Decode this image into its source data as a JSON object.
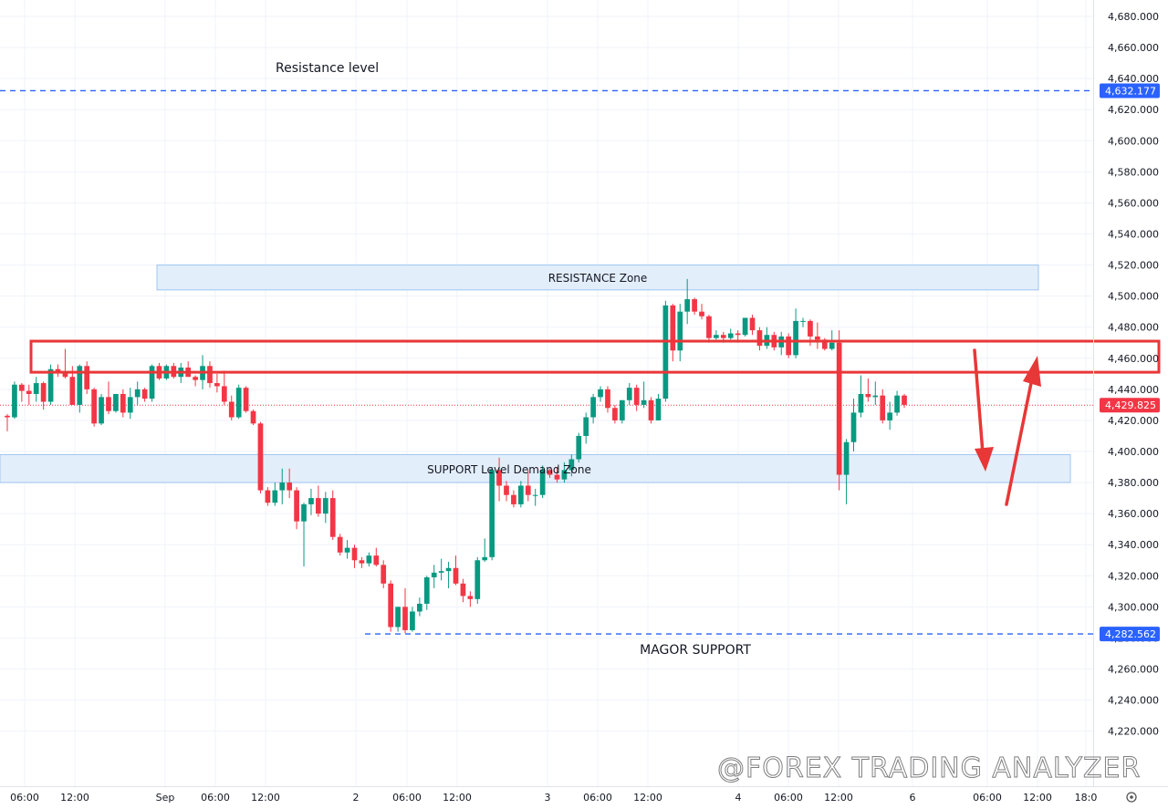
{
  "chart_data": {
    "type": "candlestick",
    "y_ticks": [
      "4,680.000",
      "4,660.000",
      "4,640.000",
      "4,620.000",
      "4,600.000",
      "4,580.000",
      "4,560.000",
      "4,540.000",
      "4,520.000",
      "4,500.000",
      "4,480.000",
      "4,460.000",
      "4,440.000",
      "4,420.000",
      "4,400.000",
      "4,380.000",
      "4,360.000",
      "4,340.000",
      "4,320.000",
      "4,300.000",
      "4,280.000",
      "4,260.000",
      "4,240.000",
      "4,220.000"
    ],
    "y_tick_values": [
      4680,
      4660,
      4640,
      4620,
      4600,
      4580,
      4560,
      4540,
      4520,
      4500,
      4480,
      4460,
      4440,
      4420,
      4400,
      4380,
      4360,
      4340,
      4320,
      4300,
      4280,
      4260,
      4240,
      4220
    ],
    "x_ticks": [
      "06:00",
      "12:00",
      "Sep",
      "06:00",
      "12:00",
      "2",
      "06:00",
      "12:00",
      "3",
      "06:00",
      "12:00",
      "4",
      "06:00",
      "12:00",
      "6",
      "06:00",
      "12:00",
      "18:0"
    ],
    "ylim": [
      4200,
      4690
    ],
    "colors": {
      "up": "#089981",
      "down": "#f23645",
      "line": "#2962ff",
      "zone_fill": "#e3eefb",
      "zone_border": "#9ec5ef",
      "red_box": "#e83737",
      "current_price": "#f23645",
      "price_label": "#2962ff"
    },
    "candles": [
      [
        4423,
        4424,
        4413,
        4422
      ],
      [
        4422,
        4445,
        4421,
        4443
      ],
      [
        4443,
        4444,
        4432,
        4439
      ],
      [
        4439,
        4443,
        4430,
        4437
      ],
      [
        4437,
        4448,
        4432,
        4444
      ],
      [
        4444,
        4445,
        4427,
        4432
      ],
      [
        4432,
        4456,
        4430,
        4453
      ],
      [
        4453,
        4456,
        4448,
        4451
      ],
      [
        4451,
        4466,
        4447,
        4448
      ],
      [
        4448,
        4455,
        4430,
        4430
      ],
      [
        4430,
        4456,
        4425,
        4455
      ],
      [
        4455,
        4458,
        4437,
        4440
      ],
      [
        4440,
        4441,
        4416,
        4418
      ],
      [
        4418,
        4437,
        4417,
        4435
      ],
      [
        4435,
        4445,
        4424,
        4426
      ],
      [
        4426,
        4437,
        4425,
        4437
      ],
      [
        4437,
        4440,
        4422,
        4425
      ],
      [
        4425,
        4441,
        4421,
        4435
      ],
      [
        4435,
        4445,
        4430,
        4440
      ],
      [
        4440,
        4441,
        4432,
        4434
      ],
      [
        4434,
        4456,
        4432,
        4455
      ],
      [
        4455,
        4457,
        4446,
        4447
      ],
      [
        4447,
        4456,
        4446,
        4455
      ],
      [
        4455,
        4457,
        4447,
        4448
      ],
      [
        4448,
        4457,
        4444,
        4454
      ],
      [
        4454,
        4458,
        4448,
        4448
      ],
      [
        4448,
        4449,
        4442,
        4446
      ],
      [
        4446,
        4462,
        4440,
        4455
      ],
      [
        4455,
        4458,
        4441,
        4444
      ],
      [
        4444,
        4450,
        4438,
        4442
      ],
      [
        4442,
        4452,
        4430,
        4432
      ],
      [
        4432,
        4436,
        4420,
        4422
      ],
      [
        4422,
        4443,
        4421,
        4441
      ],
      [
        4441,
        4442,
        4425,
        4426
      ],
      [
        4426,
        4427,
        4417,
        4418
      ],
      [
        4418,
        4419,
        4373,
        4375
      ],
      [
        4375,
        4377,
        4365,
        4367
      ],
      [
        4367,
        4380,
        4365,
        4375
      ],
      [
        4375,
        4389,
        4366,
        4380
      ],
      [
        4380,
        4389,
        4370,
        4375
      ],
      [
        4375,
        4377,
        4350,
        4355
      ],
      [
        4355,
        4367,
        4326,
        4366
      ],
      [
        4366,
        4376,
        4359,
        4370
      ],
      [
        4370,
        4378,
        4358,
        4360
      ],
      [
        4360,
        4374,
        4354,
        4370
      ],
      [
        4370,
        4375,
        4343,
        4345
      ],
      [
        4345,
        4347,
        4333,
        4335
      ],
      [
        4335,
        4343,
        4331,
        4338
      ],
      [
        4338,
        4340,
        4325,
        4330
      ],
      [
        4330,
        4332,
        4325,
        4328
      ],
      [
        4328,
        4335,
        4326,
        4333
      ],
      [
        4333,
        4338,
        4326,
        4327
      ],
      [
        4327,
        4330,
        4312,
        4315
      ],
      [
        4315,
        4317,
        4284,
        4287
      ],
      [
        4287,
        4300,
        4284,
        4300
      ],
      [
        4300,
        4312,
        4283,
        4285
      ],
      [
        4285,
        4300,
        4284,
        4297
      ],
      [
        4297,
        4306,
        4294,
        4302
      ],
      [
        4302,
        4320,
        4298,
        4319
      ],
      [
        4319,
        4327,
        4312,
        4322
      ],
      [
        4322,
        4331,
        4317,
        4323
      ],
      [
        4323,
        4329,
        4312,
        4325
      ],
      [
        4325,
        4333,
        4314,
        4315
      ],
      [
        4315,
        4318,
        4303,
        4307
      ],
      [
        4307,
        4310,
        4300,
        4305
      ],
      [
        4305,
        4332,
        4302,
        4330
      ],
      [
        4330,
        4344,
        4329,
        4332
      ],
      [
        4332,
        4390,
        4330,
        4388
      ],
      [
        4388,
        4396,
        4368,
        4378
      ],
      [
        4378,
        4381,
        4368,
        4372
      ],
      [
        4372,
        4375,
        4364,
        4366
      ],
      [
        4366,
        4381,
        4364,
        4378
      ],
      [
        4378,
        4388,
        4368,
        4372
      ],
      [
        4372,
        4376,
        4365,
        4372
      ],
      [
        4372,
        4391,
        4370,
        4388
      ],
      [
        4388,
        4389,
        4383,
        4385
      ],
      [
        4385,
        4390,
        4380,
        4382
      ],
      [
        4382,
        4393,
        4380,
        4388
      ],
      [
        4388,
        4398,
        4384,
        4395
      ],
      [
        4395,
        4412,
        4393,
        4410
      ],
      [
        4410,
        4425,
        4405,
        4422
      ],
      [
        4422,
        4437,
        4418,
        4435
      ],
      [
        4435,
        4442,
        4432,
        4440
      ],
      [
        4440,
        4442,
        4425,
        4428
      ],
      [
        4428,
        4430,
        4418,
        4420
      ],
      [
        4420,
        4433,
        4418,
        4433
      ],
      [
        4433,
        4444,
        4430,
        4441
      ],
      [
        4441,
        4443,
        4426,
        4430
      ],
      [
        4430,
        4445,
        4428,
        4433
      ],
      [
        4433,
        4435,
        4418,
        4420
      ],
      [
        4420,
        4437,
        4420,
        4434
      ],
      [
        4434,
        4497,
        4432,
        4494
      ],
      [
        4494,
        4495,
        4458,
        4465
      ],
      [
        4465,
        4495,
        4458,
        4490
      ],
      [
        4490,
        4511,
        4482,
        4498
      ],
      [
        4498,
        4499,
        4488,
        4490
      ],
      [
        4490,
        4495,
        4485,
        4487
      ],
      [
        4487,
        4488,
        4470,
        4473
      ],
      [
        4473,
        4478,
        4472,
        4475
      ],
      [
        4475,
        4477,
        4470,
        4473
      ],
      [
        4473,
        4479,
        4472,
        4476
      ],
      [
        4476,
        4478,
        4470,
        4475
      ],
      [
        4475,
        4486,
        4474,
        4486
      ],
      [
        4486,
        4488,
        4475,
        4478
      ],
      [
        4478,
        4480,
        4465,
        4468
      ],
      [
        4468,
        4480,
        4466,
        4475
      ],
      [
        4475,
        4477,
        4465,
        4467
      ],
      [
        4467,
        4477,
        4462,
        4474
      ],
      [
        4474,
        4476,
        4460,
        4462
      ],
      [
        4462,
        4492,
        4460,
        4484
      ],
      [
        4484,
        4486,
        4480,
        4484
      ],
      [
        4484,
        4485,
        4468,
        4474
      ],
      [
        4474,
        4483,
        4466,
        4472
      ],
      [
        4472,
        4473,
        4465,
        4466
      ],
      [
        4466,
        4478,
        4465,
        4470
      ],
      [
        4470,
        4478,
        4375,
        4385
      ],
      [
        4385,
        4408,
        4366,
        4406
      ],
      [
        4406,
        4434,
        4400,
        4425
      ],
      [
        4425,
        4449,
        4422,
        4437
      ],
      [
        4437,
        4447,
        4432,
        4435
      ],
      [
        4435,
        4445,
        4430,
        4436
      ],
      [
        4436,
        4440,
        4418,
        4420
      ],
      [
        4420,
        4432,
        4414,
        4425
      ],
      [
        4425,
        4439,
        4423,
        4436
      ],
      [
        4436,
        4437,
        4428,
        4430
      ]
    ],
    "current_price": 4429.825,
    "current_price_label": "4,429.825",
    "resistance_line": {
      "price": 4632.177,
      "label": "4,632.177"
    },
    "major_support_line": {
      "price": 4282.562,
      "label": "4,282.562"
    },
    "resistance_zone": {
      "top": 4520,
      "bottom": 4504
    },
    "support_zone": {
      "top": 4398,
      "bottom": 4380
    },
    "red_box": {
      "top": 4471,
      "bottom": 4451
    },
    "annotations": {
      "resistance_level": "Resistance level",
      "resistance_zone": "RESISTANCE Zone",
      "support_zone": "SUPPORT Level Demand Zone",
      "major_support": "MAGOR SUPPORT"
    },
    "watermark": "@FOREX TRADING ANALYZER"
  }
}
